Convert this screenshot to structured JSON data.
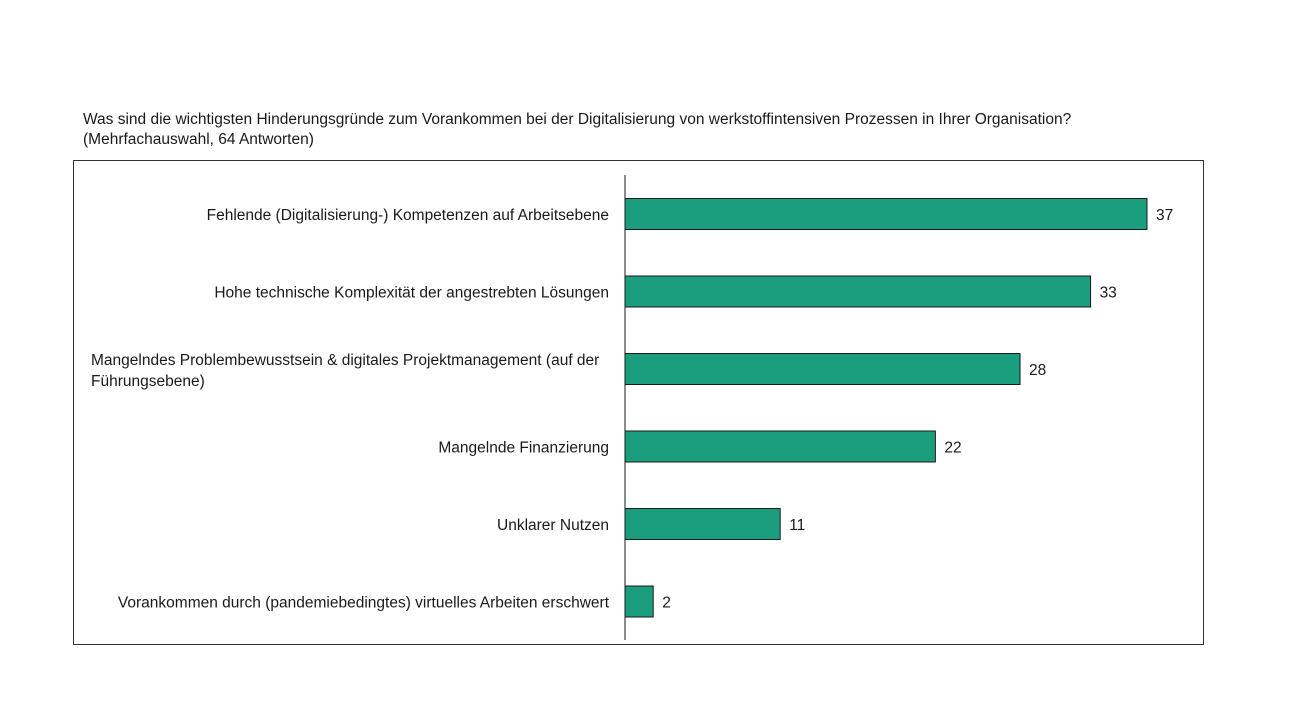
{
  "question": {
    "line1": "Was sind die wichtigsten Hinderungsgründe zum Vorankommen bei der Digitalisierung von werkstoffintensiven Prozessen in Ihrer Organisation?",
    "line2": "(Mehrfachauswahl, 64 Antworten)"
  },
  "colors": {
    "bar_fill": "#1b9e7e",
    "bar_stroke": "#1a1a1a",
    "axis": "#1a1a1a",
    "frame": "#333333"
  },
  "chart_data": {
    "type": "bar",
    "orientation": "horizontal",
    "categories": [
      [
        "Fehlende (Digitalisierung-) Kompetenzen auf Arbeitsebene"
      ],
      [
        "Hohe technische Komplexität der angestrebten Lösungen"
      ],
      [
        "Mangelndes Problembewusstsein & digitales Projektmanagement (auf der",
        "Führungsebene)"
      ],
      [
        "Mangelnde Finanzierung"
      ],
      [
        "Unklarer Nutzen"
      ],
      [
        "Vorankommen durch (pandemiebedingtes) virtuelles Arbeiten erschwert"
      ]
    ],
    "values": [
      37,
      33,
      28,
      22,
      11,
      2
    ],
    "data_labels": [
      "37",
      "33",
      "28",
      "22",
      "11",
      "2"
    ],
    "xlim": [
      0,
      37
    ],
    "grid": false,
    "legend": "none"
  }
}
